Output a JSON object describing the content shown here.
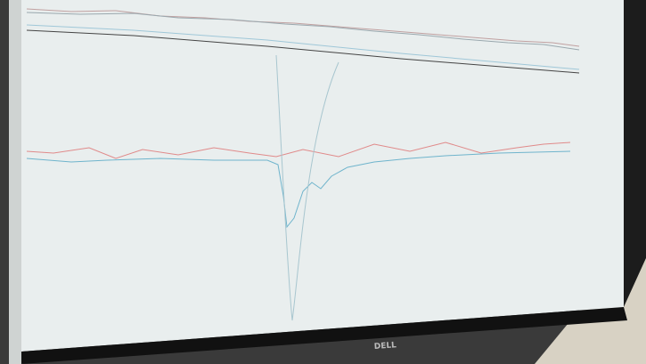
{
  "brand": "DELL"
}
